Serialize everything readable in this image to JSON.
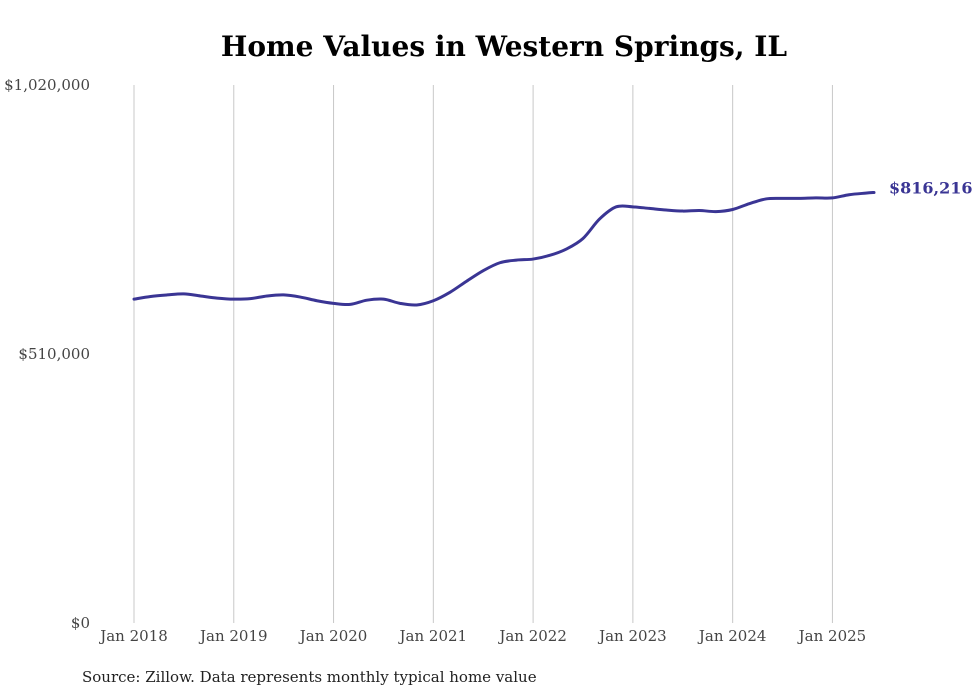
{
  "colors": {
    "line": "#3a3594",
    "grid": "#c8c8c8",
    "text": "#444444"
  },
  "chart_data": {
    "type": "line",
    "title": "Home Values in Western Springs, IL",
    "source": "Source: Zillow. Data represents monthly typical home value",
    "xlabel": "",
    "ylabel": "",
    "ylim": [
      0,
      1020000
    ],
    "xlim": [
      "2018-01",
      "2025-06"
    ],
    "y_ticks": [
      {
        "value": 0,
        "label": "$0"
      },
      {
        "value": 510000,
        "label": "$510,000"
      },
      {
        "value": 1020000,
        "label": "$1,020,000"
      }
    ],
    "x_ticks": [
      {
        "x": "2018-01",
        "label": "Jan 2018"
      },
      {
        "x": "2019-01",
        "label": "Jan 2019"
      },
      {
        "x": "2020-01",
        "label": "Jan 2020"
      },
      {
        "x": "2021-01",
        "label": "Jan 2021"
      },
      {
        "x": "2022-01",
        "label": "Jan 2022"
      },
      {
        "x": "2023-01",
        "label": "Jan 2023"
      },
      {
        "x": "2024-01",
        "label": "Jan 2024"
      },
      {
        "x": "2025-01",
        "label": "Jan 2025"
      }
    ],
    "grid": "vertical",
    "end_label": "$816,216",
    "series": [
      {
        "x": [
          "2018-01",
          "2018-03",
          "2018-05",
          "2018-07",
          "2018-09",
          "2018-11",
          "2019-01",
          "2019-03",
          "2019-05",
          "2019-07",
          "2019-09",
          "2019-11",
          "2020-01",
          "2020-03",
          "2020-05",
          "2020-07",
          "2020-09",
          "2020-11",
          "2021-01",
          "2021-03",
          "2021-05",
          "2021-07",
          "2021-09",
          "2021-11",
          "2022-01",
          "2022-03",
          "2022-05",
          "2022-07",
          "2022-09",
          "2022-11",
          "2023-01",
          "2023-03",
          "2023-05",
          "2023-07",
          "2023-09",
          "2023-11",
          "2024-01",
          "2024-03",
          "2024-05",
          "2024-07",
          "2024-09",
          "2024-11",
          "2025-01",
          "2025-03",
          "2025-05",
          "2025-06"
        ],
        "values": [
          614000,
          619000,
          622000,
          624000,
          620000,
          616000,
          614000,
          615000,
          620000,
          622000,
          618000,
          611000,
          606000,
          604000,
          612000,
          614000,
          606000,
          603000,
          611000,
          627000,
          648000,
          668000,
          683000,
          688000,
          690000,
          697000,
          709000,
          729000,
          766000,
          789000,
          789000,
          786000,
          783000,
          781000,
          782000,
          780000,
          784000,
          795000,
          804000,
          805000,
          805000,
          806000,
          806000,
          812000,
          815000,
          816216
        ]
      }
    ]
  }
}
